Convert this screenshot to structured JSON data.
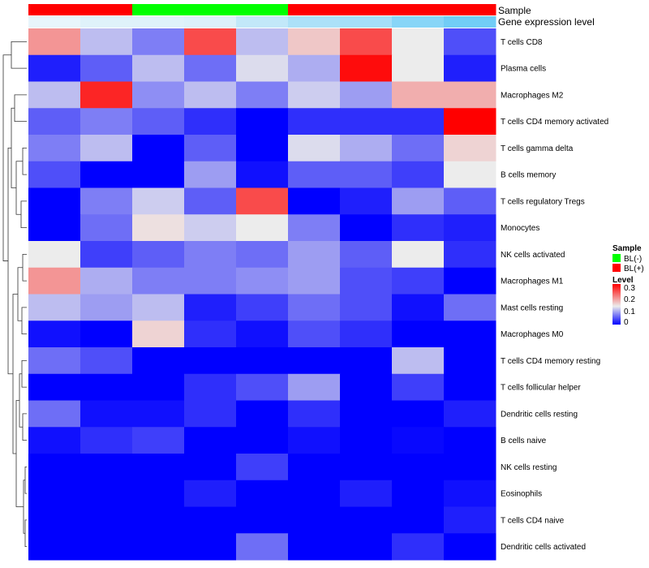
{
  "chart_data": {
    "type": "heatmap",
    "annotation_labels": {
      "sample": "Sample",
      "expression": "Gene expression level"
    },
    "rows": [
      "T cells CD8",
      "Plasma cells",
      "Macrophages M2",
      "T cells CD4 memory activated",
      "T cells gamma delta",
      "B cells memory",
      "T cells regulatory  Tregs",
      "Monocytes",
      "NK cells activated",
      "Macrophages M1",
      "Mast cells resting",
      "Macrophages M0",
      "T cells CD4 memory resting",
      "T cells follicular helper",
      "Dendritic cells resting",
      "B cells naive",
      "NK cells resting",
      "Eosinophils",
      "T cells CD4 naive",
      "Dendritic cells activated"
    ],
    "sample_group": [
      "BL(+)",
      "BL(+)",
      "BL(-)",
      "BL(-)",
      "BL(-)",
      "BL(+)",
      "BL(+)",
      "BL(+)",
      "BL(+)"
    ],
    "gene_expression": [
      0.04,
      0.1,
      0.1,
      0.12,
      0.3,
      0.45,
      0.5,
      0.7,
      0.85
    ],
    "values": [
      [
        0.22,
        0.12,
        0.08,
        0.28,
        0.12,
        0.18,
        0.28,
        0.15,
        0.05
      ],
      [
        0.02,
        0.06,
        0.12,
        0.07,
        0.14,
        0.11,
        0.33,
        0.15,
        0.02
      ],
      [
        0.12,
        0.31,
        0.09,
        0.12,
        0.08,
        0.13,
        0.1,
        0.2,
        0.2
      ],
      [
        0.06,
        0.08,
        0.06,
        0.03,
        0.0,
        0.03,
        0.03,
        0.03,
        0.34
      ],
      [
        0.08,
        0.12,
        0.0,
        0.06,
        0.0,
        0.14,
        0.11,
        0.07,
        0.17
      ],
      [
        0.05,
        0.0,
        0.0,
        0.1,
        0.01,
        0.06,
        0.06,
        0.04,
        0.15
      ],
      [
        0.0,
        0.08,
        0.13,
        0.06,
        0.28,
        0.0,
        0.02,
        0.1,
        0.06
      ],
      [
        0.0,
        0.07,
        0.16,
        0.13,
        0.15,
        0.08,
        0.0,
        0.03,
        0.02
      ],
      [
        0.15,
        0.04,
        0.06,
        0.08,
        0.07,
        0.1,
        0.06,
        0.15,
        0.03
      ],
      [
        0.22,
        0.11,
        0.08,
        0.08,
        0.09,
        0.1,
        0.05,
        0.04,
        0.0
      ],
      [
        0.12,
        0.1,
        0.12,
        0.02,
        0.04,
        0.07,
        0.05,
        0.01,
        0.07
      ],
      [
        0.01,
        0.0,
        0.17,
        0.03,
        0.01,
        0.05,
        0.03,
        0.0,
        0.0
      ],
      [
        0.07,
        0.05,
        0.0,
        0.0,
        0.0,
        0.0,
        0.0,
        0.12,
        0.0
      ],
      [
        0.0,
        0.0,
        0.0,
        0.03,
        0.05,
        0.1,
        0.0,
        0.04,
        0.0
      ],
      [
        0.07,
        0.01,
        0.01,
        0.03,
        0.0,
        0.03,
        0.0,
        0.0,
        0.02
      ],
      [
        0.01,
        0.03,
        0.04,
        0.0,
        0.0,
        0.01,
        0.0,
        0.005,
        0.0
      ],
      [
        0.0,
        0.0,
        0.0,
        0.0,
        0.04,
        0.0,
        0.0,
        0.0,
        0.0
      ],
      [
        0.0,
        0.0,
        0.0,
        0.02,
        0.0,
        0.0,
        0.02,
        0.0,
        0.01
      ],
      [
        0.0,
        0.0,
        0.0,
        0.0,
        0.0,
        0.0,
        0.0,
        0.0,
        0.02
      ],
      [
        0.0,
        0.0,
        0.0,
        0.0,
        0.07,
        0.0,
        0.0,
        0.03,
        0.0
      ]
    ],
    "legend": {
      "sample_title": "Sample",
      "sample_items": [
        {
          "label": "BL(-)",
          "color": "#00ff00"
        },
        {
          "label": "BL(+)",
          "color": "#ff0000"
        }
      ],
      "level_title": "Level",
      "level_ticks": [
        "0.3",
        "0.2",
        "0.1",
        "0"
      ],
      "level_tick_values": [
        0.3,
        0.2,
        0.1,
        0
      ]
    },
    "colors": {
      "low": "#0000ff",
      "mid": "#ececec",
      "high": "#ff0000",
      "expr_low": "#eef7fb",
      "expr_high": "#5bc6f5"
    },
    "color_scale": {
      "min": 0,
      "mid": 0.15,
      "max": 0.34
    }
  }
}
